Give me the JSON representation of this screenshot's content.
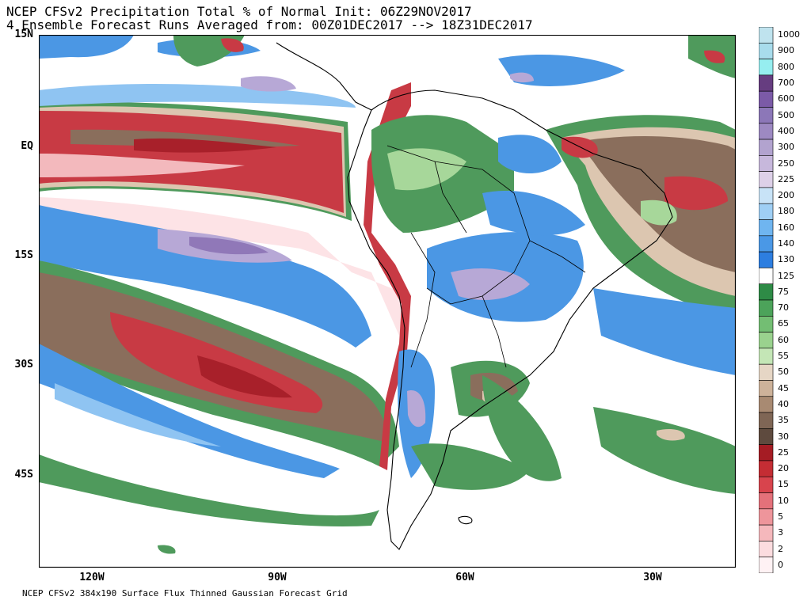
{
  "title": {
    "line1": "NCEP CFSv2 Precipitation Total % of Normal Init: 06Z29NOV2017",
    "line2": "4 Ensemble Forecast Runs Averaged from: 00Z01DEC2017 --> 18Z31DEC2017"
  },
  "footer": "NCEP CFSv2 384x190 Surface Flux Thinned Gaussian Forecast Grid",
  "axes": {
    "lat_labels": [
      "15N",
      "EQ",
      "15S",
      "30S",
      "45S"
    ],
    "lon_labels": [
      "120W",
      "90W",
      "60W",
      "30W"
    ]
  },
  "legend": {
    "levels": [
      "1000",
      "900",
      "800",
      "700",
      "600",
      "500",
      "400",
      "300",
      "250",
      "225",
      "200",
      "180",
      "160",
      "140",
      "130",
      "125",
      "75",
      "70",
      "65",
      "60",
      "55",
      "50",
      "45",
      "40",
      "35",
      "30",
      "25",
      "20",
      "15",
      "10",
      "5",
      "3",
      "2",
      "0"
    ],
    "colors": [
      "#bfe3ee",
      "#a8dcec",
      "#96eef0",
      "#663d80",
      "#7b5aa7",
      "#8c77b8",
      "#9d89c2",
      "#b2a3cf",
      "#c7b8dc",
      "#ddd0e8",
      "#c8e3f7",
      "#9fcff5",
      "#6fb5f0",
      "#4a98e6",
      "#2d7ee0",
      "#ffffff",
      "#2e8b46",
      "#4ca35a",
      "#73be73",
      "#9ad28e",
      "#c4e6b6",
      "#e6d6c5",
      "#cdb29a",
      "#a88a72",
      "#7f6655",
      "#5e4a3e",
      "#a51c24",
      "#c42d34",
      "#d8444d",
      "#e4717a",
      "#ee959b",
      "#f5b8bc",
      "#fcdcdf",
      "#fff2f4"
    ]
  },
  "map_layers": {
    "green": "#4f9a5c",
    "light_green": "#a7d79a",
    "brown": "#8a6e5c",
    "tan": "#dcc6b0",
    "red": "#c83a44",
    "dark_red": "#a8202a",
    "pink": "#f3b9bd",
    "light_pink": "#fde3e6",
    "blue": "#4b97e4",
    "light_blue": "#8fc4f2",
    "lavender": "#b7a8d6",
    "purple": "#9078b8",
    "coast": "#000000"
  }
}
